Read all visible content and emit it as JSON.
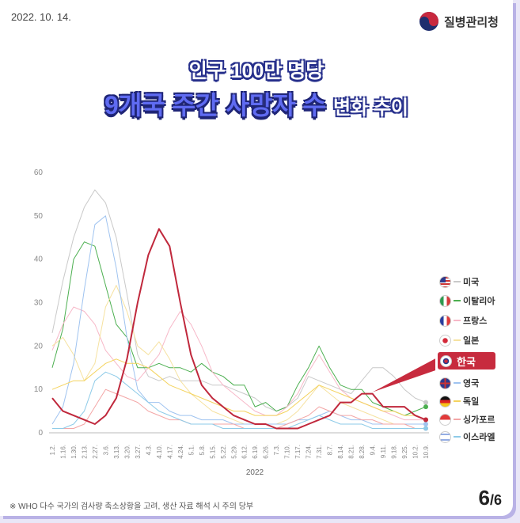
{
  "header": {
    "date": "2022. 10. 14.",
    "org_name": "질병관리청"
  },
  "title": {
    "line1": "인구 100만 명당",
    "line2_main": "9개국 주간 사망자 수",
    "line2_sub": "변화 추이"
  },
  "footnote": "※ WHO 다수 국가의 검사량 축소상황을 고려, 생산 자료 해석 시 주의 당부",
  "page": {
    "current": "6",
    "total": "/6"
  },
  "chart_data": {
    "type": "line",
    "xlabel": "2022",
    "ylabel": "",
    "ylim": [
      0,
      60
    ],
    "yticks": [
      "0",
      "10",
      "20",
      "30",
      "40",
      "50",
      "60"
    ],
    "grid": false,
    "legend_position": "right",
    "x": [
      "1.2.",
      "1.16.",
      "1.30.",
      "2.13.",
      "2.27.",
      "3.6.",
      "3.13.",
      "3.20.",
      "3.27.",
      "4.3.",
      "4.10.",
      "4.17.",
      "4.24.",
      "5.1.",
      "5.8.",
      "5.15.",
      "5.22.",
      "5.29.",
      "6.12.",
      "6.19.",
      "6.26.",
      "7.3.",
      "7.10.",
      "7.17.",
      "7.24.",
      "7.31.",
      "8.7.",
      "8.14.",
      "8.21.",
      "8.28.",
      "9.4.",
      "9.11.",
      "9.18.",
      "9.25.",
      "10.2.",
      "10.9."
    ],
    "series": [
      {
        "name": "미국",
        "color": "#c9c9c9",
        "values": [
          23,
          35,
          45,
          52,
          56,
          53,
          45,
          32,
          18,
          13,
          12,
          13,
          12,
          12,
          12,
          11,
          11,
          10,
          9,
          8,
          6,
          5,
          6,
          8,
          13,
          12,
          11,
          10,
          9,
          12,
          15,
          15,
          13,
          10,
          8,
          7
        ]
      },
      {
        "name": "이탈리아",
        "color": "#4caf50",
        "values": [
          15,
          24,
          40,
          44,
          43,
          34,
          25,
          22,
          15,
          15,
          16,
          15,
          15,
          14,
          16,
          14,
          13,
          11,
          11,
          6,
          7,
          5,
          6,
          11,
          15,
          20,
          15,
          11,
          10,
          10,
          7,
          6,
          5,
          4,
          5,
          6
        ]
      },
      {
        "name": "프랑스",
        "color": "#f7b8c8",
        "values": [
          19,
          25,
          29,
          28,
          25,
          19,
          16,
          13,
          12,
          15,
          18,
          24,
          28,
          25,
          20,
          14,
          11,
          9,
          7,
          5,
          4,
          4,
          6,
          9,
          14,
          18,
          14,
          10,
          8,
          7,
          6,
          5,
          4,
          3,
          3,
          3
        ]
      },
      {
        "name": "일본",
        "color": "#f6e2a0",
        "values": [
          20,
          22,
          18,
          12,
          16,
          29,
          34,
          28,
          20,
          18,
          21,
          17,
          12,
          9,
          7,
          5,
          4,
          3,
          2,
          2,
          2,
          2,
          3,
          5,
          8,
          11,
          9,
          7,
          6,
          5,
          4,
          3,
          2,
          2,
          2,
          2
        ]
      },
      {
        "name": "한국",
        "color": "#c0283c",
        "values": [
          8,
          5,
          4,
          3,
          2,
          4,
          8,
          17,
          30,
          41,
          47,
          43,
          30,
          18,
          11,
          8,
          6,
          4,
          3,
          2,
          2,
          1,
          1,
          1,
          2,
          3,
          4,
          7,
          7,
          9,
          9,
          6,
          6,
          6,
          4,
          3
        ]
      },
      {
        "name": "영국",
        "color": "#9fc3f0",
        "values": [
          2,
          6,
          16,
          33,
          48,
          50,
          38,
          22,
          10,
          7,
          7,
          5,
          4,
          4,
          3,
          3,
          3,
          2,
          2,
          2,
          2,
          2,
          2,
          3,
          3,
          4,
          5,
          4,
          3,
          3,
          2,
          2,
          2,
          2,
          2,
          2
        ]
      },
      {
        "name": "독일",
        "color": "#f4d35e",
        "values": [
          10,
          11,
          12,
          12,
          14,
          16,
          17,
          16,
          16,
          15,
          13,
          11,
          10,
          9,
          8,
          7,
          6,
          5,
          5,
          4,
          4,
          4,
          5,
          7,
          9,
          11,
          10,
          9,
          8,
          7,
          6,
          5,
          5,
          4,
          4,
          3
        ]
      },
      {
        "name": "싱가포르",
        "color": "#f3a6a6",
        "values": [
          1,
          1,
          1,
          2,
          6,
          10,
          9,
          8,
          7,
          5,
          4,
          3,
          3,
          2,
          2,
          2,
          2,
          2,
          1,
          1,
          1,
          1,
          2,
          3,
          4,
          6,
          5,
          4,
          4,
          3,
          3,
          2,
          2,
          2,
          1,
          1
        ]
      },
      {
        "name": "이스라엘",
        "color": "#8ecbe8",
        "values": [
          1,
          1,
          2,
          5,
          12,
          14,
          13,
          11,
          9,
          7,
          5,
          4,
          3,
          2,
          2,
          2,
          1,
          1,
          1,
          1,
          1,
          1,
          1,
          2,
          3,
          4,
          3,
          2,
          2,
          2,
          1,
          1,
          1,
          1,
          1,
          1
        ]
      }
    ]
  },
  "legend": {
    "items": [
      {
        "label": "미국",
        "flag": "us-flag-icon",
        "color": "#c9c9c9"
      },
      {
        "label": "이탈리아",
        "flag": "italy-flag-icon",
        "color": "#4caf50"
      },
      {
        "label": "프랑스",
        "flag": "france-flag-icon",
        "color": "#f7b8c8"
      },
      {
        "label": "일본",
        "flag": "japan-flag-icon",
        "color": "#f6e2a0"
      },
      {
        "label": "한국",
        "flag": "korea-flag-icon",
        "color": "#c0283c"
      },
      {
        "label": "영국",
        "flag": "uk-flag-icon",
        "color": "#9fc3f0"
      },
      {
        "label": "독일",
        "flag": "germany-flag-icon",
        "color": "#f4d35e"
      },
      {
        "label": "싱가포르",
        "flag": "singapore-flag-icon",
        "color": "#f3a6a6"
      },
      {
        "label": "이스라엘",
        "flag": "israel-flag-icon",
        "color": "#8ecbe8"
      }
    ]
  }
}
